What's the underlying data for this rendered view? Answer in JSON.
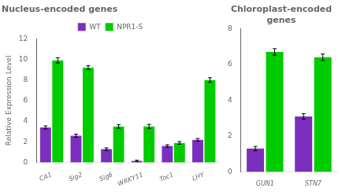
{
  "chart_data": [
    {
      "type": "bar",
      "title": "Nucleus-encoded genes",
      "ylabel": "Relative Expression Level",
      "categories": [
        "CA1",
        "Sig2",
        "Sig6",
        "WRKY11",
        "Toc1",
        "LHY"
      ],
      "series": [
        {
          "name": "WT",
          "color": "#7B2FBE",
          "values": [
            3.4,
            2.6,
            1.3,
            0.15,
            1.6,
            2.2
          ],
          "errors": [
            0.15,
            0.15,
            0.12,
            0.08,
            0.12,
            0.13
          ]
        },
        {
          "name": "NPR1-S",
          "color": "#00CC00",
          "values": [
            9.9,
            9.2,
            3.5,
            3.5,
            1.9,
            8.0
          ],
          "errors": [
            0.25,
            0.18,
            0.18,
            0.2,
            0.13,
            0.22
          ]
        }
      ],
      "ylim": [
        0,
        12
      ],
      "yticks": [
        0,
        2,
        4,
        6,
        8,
        10,
        12
      ],
      "grid": false,
      "legend": "top"
    },
    {
      "type": "bar",
      "title": "Chloroplast-encoded\ngenes",
      "categories": [
        "GUN1",
        "STN7"
      ],
      "series": [
        {
          "name": "WT",
          "color": "#7B2FBE",
          "values": [
            1.3,
            3.1
          ],
          "errors": [
            0.12,
            0.15
          ]
        },
        {
          "name": "NPR1-S",
          "color": "#00CC00",
          "values": [
            6.7,
            6.4
          ],
          "errors": [
            0.18,
            0.18
          ]
        }
      ],
      "ylim": [
        0,
        8
      ],
      "yticks": [
        0,
        2,
        4,
        6,
        8
      ],
      "grid": false,
      "legend": false
    }
  ]
}
